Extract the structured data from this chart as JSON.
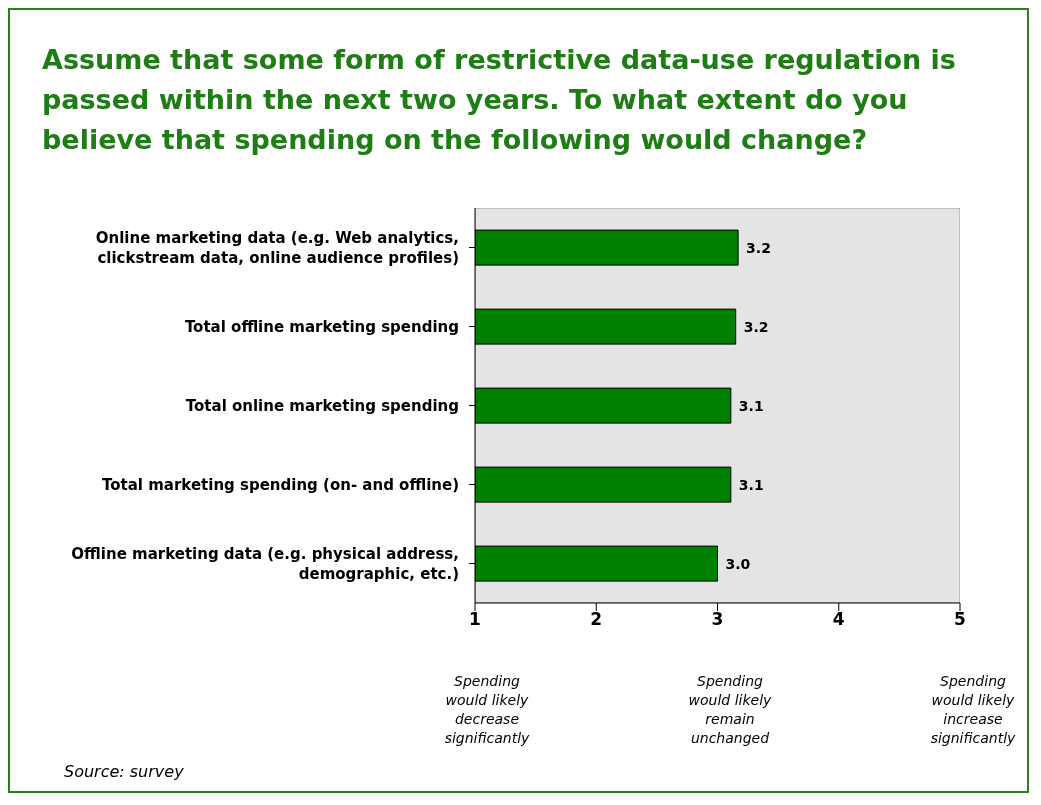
{
  "chart_data": {
    "type": "bar",
    "orientation": "horizontal",
    "title": "Assume that some form of restrictive data-use regulation is passed within the next two years. To what extent do you believe that spending on the following would change?",
    "categories": [
      "Online marketing data (e.g. Web analytics, clickstream data, online audience profiles)",
      "Total offline marketing spending",
      "Total online marketing spending",
      "Total marketing spending (on- and offline)",
      "Offline marketing data (e.g. physical address, demographic, etc.)"
    ],
    "values": [
      3.17,
      3.15,
      3.11,
      3.11,
      3.0
    ],
    "value_labels": [
      "3.2",
      "3.2",
      "3.1",
      "3.1",
      "3.0"
    ],
    "color": "#008000",
    "xlim": [
      1,
      5
    ],
    "xticks": [
      1,
      2,
      3,
      4,
      5
    ],
    "grid": false,
    "legend": false,
    "annotations": [
      "Spending would likely decrease significantly",
      "Spending would likely remain unchanged",
      "Spending would likely increase significantly",
      "Source: survey"
    ]
  }
}
